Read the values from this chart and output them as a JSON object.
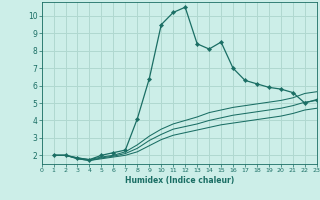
{
  "xlabel": "Humidex (Indice chaleur)",
  "ylabel": "",
  "background_color": "#cceee8",
  "line_color": "#1a6e64",
  "grid_color": "#b0d8d0",
  "xlim": [
    0,
    23
  ],
  "ylim": [
    1.5,
    10.8
  ],
  "xticks": [
    0,
    1,
    2,
    3,
    4,
    5,
    6,
    7,
    8,
    9,
    10,
    11,
    12,
    13,
    14,
    15,
    16,
    17,
    18,
    19,
    20,
    21,
    22,
    23
  ],
  "yticks": [
    2,
    3,
    4,
    5,
    6,
    7,
    8,
    9,
    10
  ],
  "series": [
    {
      "x": [
        1,
        2,
        3,
        4,
        5,
        6,
        7,
        8,
        9,
        10,
        11,
        12,
        13,
        14,
        15,
        16,
        17,
        18,
        19,
        20,
        21,
        22,
        23
      ],
      "y": [
        2.0,
        2.0,
        1.85,
        1.75,
        2.0,
        2.15,
        2.3,
        4.1,
        6.4,
        9.5,
        10.2,
        10.5,
        8.4,
        8.1,
        8.5,
        7.0,
        6.3,
        6.1,
        5.9,
        5.8,
        5.6,
        5.0,
        5.2
      ],
      "marker": true
    },
    {
      "x": [
        1,
        2,
        3,
        4,
        5,
        6,
        7,
        8,
        9,
        10,
        11,
        12,
        13,
        14,
        15,
        16,
        17,
        18,
        19,
        20,
        21,
        22,
        23
      ],
      "y": [
        2.0,
        2.0,
        1.85,
        1.75,
        1.9,
        2.0,
        2.2,
        2.6,
        3.1,
        3.5,
        3.8,
        4.0,
        4.2,
        4.45,
        4.6,
        4.75,
        4.85,
        4.95,
        5.05,
        5.15,
        5.3,
        5.55,
        5.65
      ],
      "marker": false
    },
    {
      "x": [
        1,
        2,
        3,
        4,
        5,
        6,
        7,
        8,
        9,
        10,
        11,
        12,
        13,
        14,
        15,
        16,
        17,
        18,
        19,
        20,
        21,
        22,
        23
      ],
      "y": [
        2.0,
        2.0,
        1.8,
        1.7,
        1.85,
        1.95,
        2.1,
        2.4,
        2.85,
        3.2,
        3.5,
        3.65,
        3.8,
        4.0,
        4.15,
        4.3,
        4.4,
        4.5,
        4.6,
        4.7,
        4.85,
        5.05,
        5.15
      ],
      "marker": false
    },
    {
      "x": [
        1,
        2,
        3,
        4,
        5,
        6,
        7,
        8,
        9,
        10,
        11,
        12,
        13,
        14,
        15,
        16,
        17,
        18,
        19,
        20,
        21,
        22,
        23
      ],
      "y": [
        2.0,
        2.0,
        1.8,
        1.7,
        1.8,
        1.9,
        2.0,
        2.2,
        2.55,
        2.9,
        3.15,
        3.3,
        3.45,
        3.6,
        3.75,
        3.85,
        3.95,
        4.05,
        4.15,
        4.25,
        4.4,
        4.6,
        4.7
      ],
      "marker": false
    }
  ]
}
